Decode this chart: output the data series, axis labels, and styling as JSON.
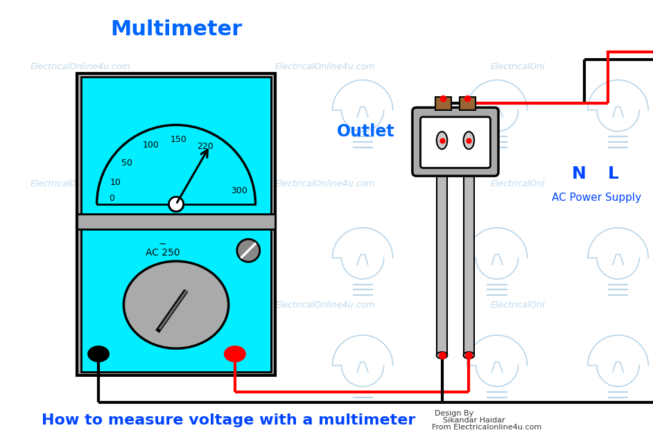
{
  "title": "Multimeter",
  "title_color": "#0066FF",
  "title_fontsize": 22,
  "subtitle": "How to measure voltage with a multimeter",
  "subtitle_color": "#0044FF",
  "subtitle_fontsize": 16,
  "design_text_1": "Design By",
  "design_text_2": "Sikandar Haidar",
  "design_text_3": "From Electricalonline4u.com",
  "outlet_label": "Outlet",
  "outlet_color": "#0066FF",
  "nl_label_n": "N",
  "nl_label_l": "L",
  "nl_color": "#0044FF",
  "ac_supply_label": "AC Power Supply",
  "ac_supply_color": "#0044FF",
  "watermark_text": "ElectricalOnline4u.com",
  "watermark_color": "#b8d4e8",
  "cyan_color": "#00EEFF",
  "gray_color": "#aaaaaa",
  "dark_gray": "#666666",
  "light_gray": "#cccccc",
  "mid_gray": "#888888",
  "red_color": "#FF0000",
  "black_color": "#000000",
  "white_color": "#FFFFFF",
  "background_color": "#FFFFFF",
  "ac_label": "AC 250",
  "brown_color": "#996633",
  "probe_gray": "#bbbbbb"
}
